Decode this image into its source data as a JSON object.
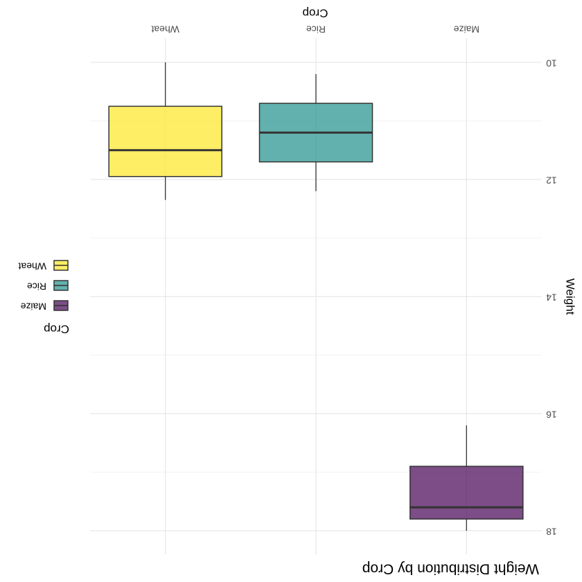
{
  "chart_data": {
    "type": "box",
    "title": "Weight Distribution by Crop",
    "xlabel": "Crop",
    "ylabel": "Weight",
    "categories": [
      "Maize",
      "Rice",
      "Wheat"
    ],
    "ylim": [
      10,
      18
    ],
    "yticks": [
      10,
      12,
      14,
      16,
      18
    ],
    "grid": true,
    "orientation": "rotated-180",
    "legend": {
      "title": "Crop",
      "placement": "left",
      "entries": [
        "Maize",
        "Rice",
        "Wheat"
      ]
    },
    "series": [
      {
        "category": "Maize",
        "color": "#440154",
        "min": 16.2,
        "q1": 16.9,
        "median": 17.6,
        "q3": 17.8,
        "max": 18.0
      },
      {
        "category": "Rice",
        "color": "#21908C",
        "min": 10.2,
        "q1": 10.7,
        "median": 11.2,
        "q3": 11.7,
        "max": 12.2
      },
      {
        "category": "Wheat",
        "color": "#FDE725",
        "min": 10.0,
        "q1": 10.75,
        "median": 11.5,
        "q3": 11.95,
        "max": 12.35
      }
    ]
  }
}
